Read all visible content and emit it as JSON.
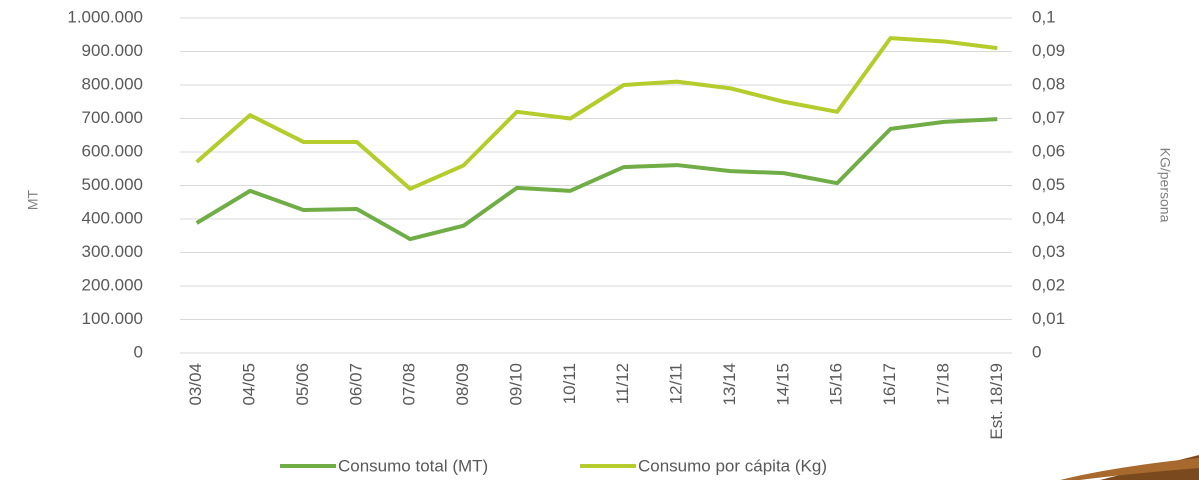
{
  "chart_data": {
    "type": "line",
    "y_label": "MT",
    "y2_label": "KG/persona",
    "categories": [
      "03/04",
      "04/05",
      "05/06",
      "06/07",
      "07/08",
      "08/09",
      "09/10",
      "10/11",
      "11/12",
      "12/11",
      "13/14",
      "14/15",
      "15/16",
      "16/17",
      "17/18",
      "Est. 18/19"
    ],
    "series": [
      {
        "name": "Consumo total (MT)",
        "color": "#70ad47",
        "values": [
          388000,
          484000,
          427000,
          430000,
          340000,
          380000,
          493000,
          484000,
          555000,
          561000,
          543000,
          537000,
          507000,
          669000,
          690000,
          698000
        ]
      },
      {
        "name": "Consumo por cápita (Kg)",
        "color": "#b4cc2c",
        "axis": "y2",
        "values": [
          0.057,
          0.071,
          0.063,
          0.063,
          0.049,
          0.056,
          0.072,
          0.07,
          0.08,
          0.081,
          0.079,
          0.075,
          0.072,
          0.094,
          0.093,
          0.091
        ]
      }
    ],
    "ylim": [
      0,
      1000000
    ],
    "yticks": [
      0,
      {
        "value": 100000,
        "label": "100.000"
      },
      {
        "value": 200000,
        "label": "200.000"
      },
      {
        "value": 300000,
        "label": "300.000"
      },
      {
        "value": 400000,
        "label": "400.000"
      },
      {
        "value": 500000,
        "label": "500.000"
      },
      {
        "value": 600000,
        "label": "600.000"
      },
      {
        "value": 700000,
        "label": "700.000"
      },
      {
        "value": 800000,
        "label": "800.000"
      },
      {
        "value": 900000,
        "label": "900.000"
      },
      {
        "value": 1000000,
        "label": "1.000.000"
      }
    ],
    "y2lim": [
      0,
      0.1
    ],
    "y2ticks": [
      0,
      {
        "value": 0.01,
        "label": "0,01"
      },
      {
        "value": 0.02,
        "label": "0,02"
      },
      {
        "value": 0.03,
        "label": "0,03"
      },
      {
        "value": 0.04,
        "label": "0,04"
      },
      {
        "value": 0.05,
        "label": "0,05"
      },
      {
        "value": 0.06,
        "label": "0,06"
      },
      {
        "value": 0.07,
        "label": "0,07"
      },
      {
        "value": 0.08,
        "label": "0,08"
      },
      {
        "value": 0.09,
        "label": "0,09"
      },
      {
        "value": 0.1,
        "label": "0,1"
      }
    ],
    "grid": true
  }
}
